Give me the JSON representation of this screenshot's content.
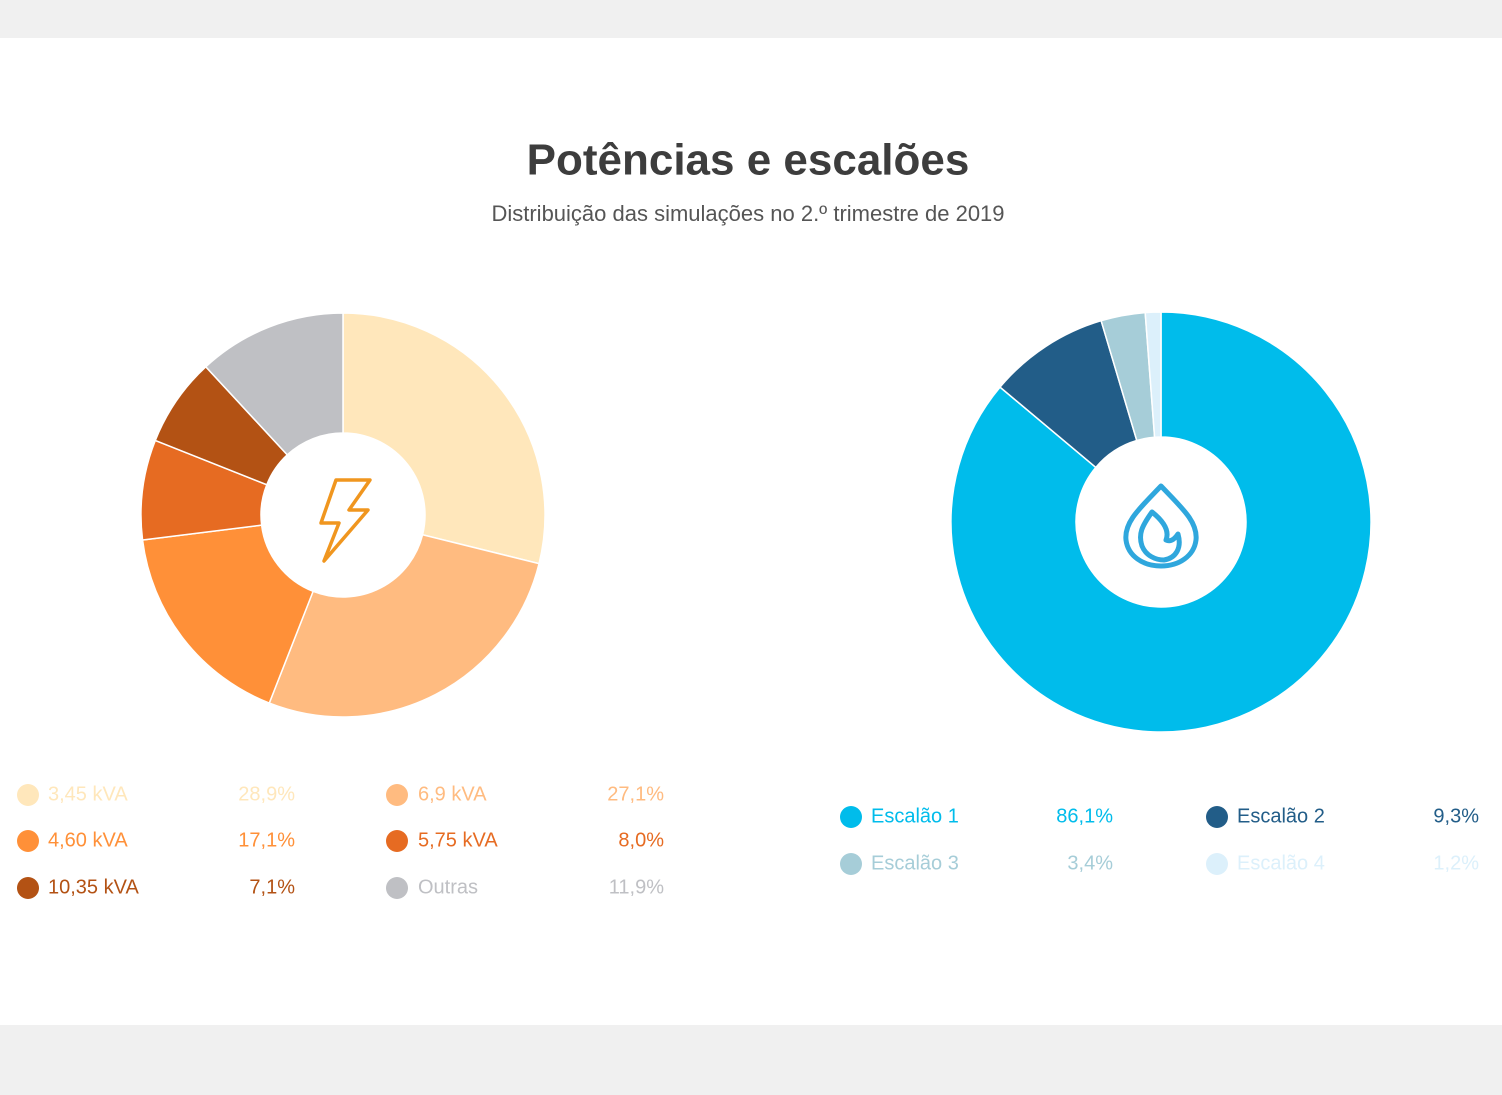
{
  "title": "Potências e escalões",
  "subtitle": "Distribuição das simulações no 2.º trimestre de 2019",
  "chart_data": [
    {
      "type": "pie",
      "categories": [
        "3,45 kVA",
        "6,9 kVA",
        "4,60 kVA",
        "5,75 kVA",
        "10,35 kVA",
        "Outras"
      ],
      "values": [
        28.9,
        27.1,
        17.1,
        8.0,
        7.1,
        11.9
      ],
      "value_labels": [
        "28,9%",
        "27,1%",
        "17,1%",
        "8,0%",
        "7,1%",
        "11,9%"
      ],
      "colors": [
        "#ffe7bb",
        "#ffbb80",
        "#ff9038",
        "#e66b22",
        "#b35214",
        "#bfc0c4"
      ]
    },
    {
      "type": "pie",
      "categories": [
        "Escalão 1",
        "Escalão 2",
        "Escalão 3",
        "Escalão 4"
      ],
      "values": [
        86.1,
        9.3,
        3.4,
        1.2
      ],
      "value_labels": [
        "86,1%",
        "9,3%",
        "3,4%",
        "1,2%"
      ],
      "colors": [
        "#00bceb",
        "#225d88",
        "#a6cdd8",
        "#dcf0fb"
      ]
    }
  ]
}
